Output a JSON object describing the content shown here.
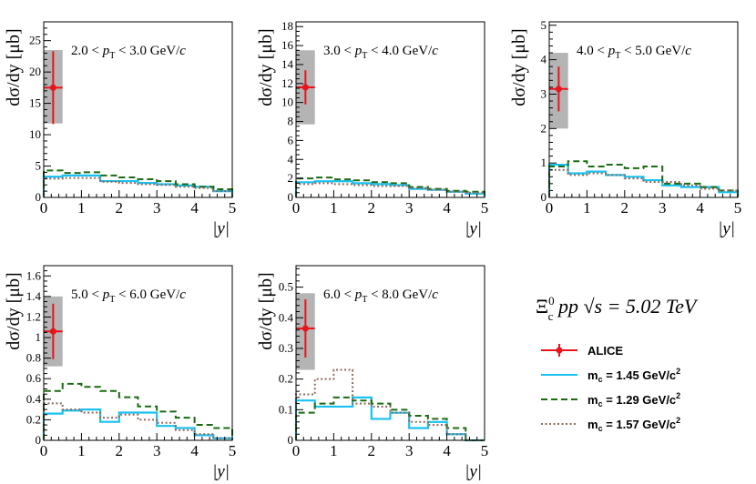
{
  "figure": {
    "annotation_main": "Ξ",
    "annotation_sup": "0",
    "annotation_sub": "c",
    "annotation_rest": " pp  √s = 5.02 TeV"
  },
  "legend": {
    "entries": [
      {
        "label": "ALICE",
        "style": "marker",
        "color": "#e8141c"
      },
      {
        "label": "m_c = 1.45 GeV/c^2",
        "label_main": "m",
        "label_sub": "c",
        "label_rest": " = 1.45 GeV/c",
        "label_sup": "2",
        "style": "solid",
        "color": "#19c1ef"
      },
      {
        "label": "m_c = 1.29 GeV/c^2",
        "label_main": "m",
        "label_sub": "c",
        "label_rest": " = 1.29 GeV/c",
        "label_sup": "2",
        "style": "dashed",
        "color": "#1a6b12"
      },
      {
        "label": "m_c = 1.57 GeV/c^2",
        "label_main": "m",
        "label_sub": "c",
        "label_rest": " = 1.57 GeV/c",
        "label_sup": "2",
        "style": "dotted",
        "color": "#8c6a5e"
      }
    ]
  },
  "chart_data": [
    {
      "type": "step",
      "title": "2.0 < p_T < 3.0 GeV/c",
      "title_parts": {
        "pre": "2.0 < ",
        "var": "p",
        "sub": "T",
        "post": " < 3.0 GeV/",
        "unit": "c"
      },
      "ylabel": "dσ/dy [μb]",
      "xlabel": "|y|",
      "xlim": [
        0,
        5
      ],
      "ylim": [
        0,
        28
      ],
      "yticks": [
        0,
        5,
        10,
        15,
        20,
        25
      ],
      "yminor": 1,
      "xticks": [
        0,
        1,
        2,
        3,
        4,
        5
      ],
      "edges": [
        0,
        0.5,
        1,
        1.5,
        2,
        2.5,
        3,
        3.5,
        4,
        4.5,
        5
      ],
      "series": [
        {
          "name": "m_c = 1.45 GeV/c^2",
          "style": "solid",
          "values": [
            3.3,
            3.5,
            3.5,
            2.6,
            2.6,
            2.3,
            2.1,
            1.9,
            1.7,
            1.0
          ]
        },
        {
          "name": "m_c = 1.29 GeV/c^2",
          "style": "dashed",
          "values": [
            4.3,
            3.9,
            4.0,
            3.5,
            3.2,
            2.9,
            2.6,
            2.1,
            1.7,
            1.3
          ]
        },
        {
          "name": "m_c = 1.57 GeV/c^2",
          "style": "dotted",
          "values": [
            3.0,
            3.1,
            3.1,
            2.5,
            2.3,
            2.1,
            2.0,
            1.7,
            1.5,
            1.0
          ]
        }
      ],
      "data_point": {
        "x": 0.25,
        "xerr": 0.25,
        "y": 17.5,
        "yerr": 5.8,
        "box": [
          0,
          0.5,
          11.8,
          23.5
        ]
      }
    },
    {
      "type": "step",
      "title": "3.0 < p_T < 4.0 GeV/c",
      "title_parts": {
        "pre": "3.0 < ",
        "var": "p",
        "sub": "T",
        "post": " < 4.0 GeV/",
        "unit": "c"
      },
      "ylabel": "dσ/dy [μb]",
      "xlabel": "|y|",
      "xlim": [
        0,
        5
      ],
      "ylim": [
        0,
        18.5
      ],
      "yticks": [
        0,
        2,
        4,
        6,
        8,
        10,
        12,
        14,
        16,
        18
      ],
      "yminor": 0.5,
      "xticks": [
        0,
        1,
        2,
        3,
        4,
        5
      ],
      "edges": [
        0,
        0.5,
        1,
        1.5,
        2,
        2.5,
        3,
        3.5,
        4,
        4.5,
        5
      ],
      "series": [
        {
          "name": "m_c = 1.45 GeV/c^2",
          "style": "solid",
          "values": [
            1.6,
            1.7,
            1.7,
            1.5,
            1.4,
            1.3,
            0.9,
            0.8,
            0.6,
            0.4
          ]
        },
        {
          "name": "m_c = 1.29 GeV/c^2",
          "style": "dashed",
          "values": [
            2.0,
            2.1,
            1.9,
            1.8,
            1.6,
            1.5,
            1.1,
            0.9,
            0.7,
            0.6
          ]
        },
        {
          "name": "m_c = 1.57 GeV/c^2",
          "style": "dotted",
          "values": [
            1.4,
            1.5,
            1.4,
            1.3,
            1.2,
            1.2,
            1.0,
            0.8,
            0.6,
            0.5
          ]
        }
      ],
      "data_point": {
        "x": 0.25,
        "xerr": 0.25,
        "y": 11.6,
        "yerr": 1.8,
        "box": [
          0,
          0.5,
          7.7,
          15.5
        ]
      }
    },
    {
      "type": "step",
      "title": "4.0 < p_T < 5.0 GeV/c",
      "title_parts": {
        "pre": "4.0 < ",
        "var": "p",
        "sub": "T",
        "post": " < 5.0 GeV/",
        "unit": "c"
      },
      "ylabel": "dσ/dy [μb]",
      "xlabel": "|y|",
      "xlim": [
        0,
        5
      ],
      "ylim": [
        0,
        5.1
      ],
      "yticks": [
        0,
        1,
        2,
        3,
        4,
        5
      ],
      "yminor": 0.2,
      "xticks": [
        0,
        1,
        2,
        3,
        4,
        5
      ],
      "edges": [
        0,
        0.5,
        1,
        1.5,
        2,
        2.5,
        3,
        3.5,
        4,
        4.5,
        5
      ],
      "series": [
        {
          "name": "m_c = 1.45 GeV/c^2",
          "style": "solid",
          "values": [
            0.95,
            0.7,
            0.75,
            0.65,
            0.6,
            0.5,
            0.35,
            0.3,
            0.3,
            0.15
          ]
        },
        {
          "name": "m_c = 1.29 GeV/c^2",
          "style": "dashed",
          "values": [
            0.9,
            1.05,
            0.9,
            0.95,
            0.85,
            0.9,
            0.4,
            0.4,
            0.3,
            0.2
          ]
        },
        {
          "name": "m_c = 1.57 GeV/c^2",
          "style": "dotted",
          "values": [
            0.8,
            0.65,
            0.7,
            0.65,
            0.55,
            0.45,
            0.45,
            0.35,
            0.25,
            0.2
          ]
        }
      ],
      "data_point": {
        "x": 0.25,
        "xerr": 0.25,
        "y": 3.15,
        "yerr": 0.65,
        "box": [
          0,
          0.5,
          2.0,
          4.2
        ]
      }
    },
    {
      "type": "step",
      "title": "5.0 < p_T < 6.0 GeV/c",
      "title_parts": {
        "pre": "5.0 < ",
        "var": "p",
        "sub": "T",
        "post": " < 6.0 GeV/",
        "unit": "c"
      },
      "ylabel": "dσ/dy [μb]",
      "xlabel": "|y|",
      "xlim": [
        0,
        5
      ],
      "ylim": [
        0,
        1.7
      ],
      "yticks": [
        0,
        0.2,
        0.4,
        0.6,
        0.8,
        1,
        1.2,
        1.4,
        1.6
      ],
      "yminor": 0.05,
      "xticks": [
        0,
        1,
        2,
        3,
        4,
        5
      ],
      "edges": [
        0,
        0.5,
        1,
        1.5,
        2,
        2.5,
        3,
        3.5,
        4,
        4.5,
        5
      ],
      "series": [
        {
          "name": "m_c = 1.45 GeV/c^2",
          "style": "solid",
          "values": [
            0.26,
            0.29,
            0.3,
            0.18,
            0.27,
            0.27,
            0.14,
            0.12,
            0.05,
            0.02
          ]
        },
        {
          "name": "m_c = 1.29 GeV/c^2",
          "style": "dashed",
          "values": [
            0.48,
            0.55,
            0.52,
            0.48,
            0.42,
            0.33,
            0.28,
            0.22,
            0.15,
            0.12
          ]
        },
        {
          "name": "m_c = 1.57 GeV/c^2",
          "style": "dotted",
          "values": [
            0.36,
            0.3,
            0.27,
            0.22,
            0.25,
            0.2,
            0.17,
            0.1,
            0.06,
            0.02
          ]
        }
      ],
      "data_point": {
        "x": 0.25,
        "xerr": 0.25,
        "y": 1.06,
        "yerr": 0.27,
        "box": [
          0,
          0.5,
          0.72,
          1.4
        ]
      }
    },
    {
      "type": "step",
      "title": "6.0 < p_T < 8.0 GeV/c",
      "title_parts": {
        "pre": "6.0 < ",
        "var": "p",
        "sub": "T",
        "post": " < 8.0 GeV/",
        "unit": "c"
      },
      "ylabel": "dσ/dy [μb]",
      "xlabel": "|y|",
      "xlim": [
        0,
        5
      ],
      "ylim": [
        0,
        0.57
      ],
      "yticks": [
        0,
        0.1,
        0.2,
        0.3,
        0.4,
        0.5
      ],
      "yminor": 0.02,
      "xticks": [
        0,
        1,
        2,
        3,
        4,
        5
      ],
      "edges": [
        0,
        0.5,
        1,
        1.5,
        2,
        2.5,
        3,
        3.5,
        4,
        4.5,
        5
      ],
      "series": [
        {
          "name": "m_c = 1.45 GeV/c^2",
          "style": "solid",
          "values": [
            0.13,
            0.11,
            0.11,
            0.14,
            0.07,
            0.09,
            0.04,
            0.06,
            0.02,
            0.0
          ]
        },
        {
          "name": "m_c = 1.29 GeV/c^2",
          "style": "dashed",
          "values": [
            0.09,
            0.12,
            0.14,
            0.13,
            0.12,
            0.1,
            0.08,
            0.07,
            0.04,
            0.0
          ]
        },
        {
          "name": "m_c = 1.57 GeV/c^2",
          "style": "dotted",
          "values": [
            0.15,
            0.2,
            0.23,
            0.12,
            0.11,
            0.09,
            0.06,
            0.05,
            0.02,
            0.0
          ]
        }
      ],
      "data_point": {
        "x": 0.25,
        "xerr": 0.25,
        "y": 0.365,
        "yerr": 0.095,
        "box": [
          0,
          0.5,
          0.23,
          0.48
        ]
      }
    }
  ]
}
